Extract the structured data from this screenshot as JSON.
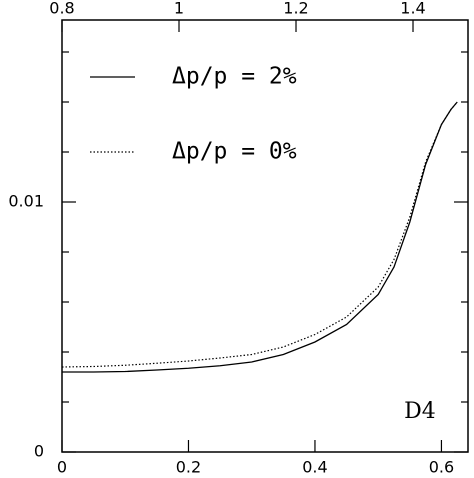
{
  "chart_data": {
    "type": "line",
    "x": [
      0,
      0.05,
      0.1,
      0.15,
      0.2,
      0.25,
      0.3,
      0.35,
      0.4,
      0.45,
      0.5,
      0.525,
      0.55,
      0.575,
      0.6,
      0.615,
      0.625
    ],
    "series": [
      {
        "name": "Δp/p = 2%",
        "color": "#000000",
        "dash": "solid",
        "values": [
          0.0032,
          0.0032,
          0.00322,
          0.00328,
          0.00335,
          0.00345,
          0.0036,
          0.0039,
          0.0044,
          0.0051,
          0.0063,
          0.0074,
          0.0092,
          0.0115,
          0.0131,
          0.0137,
          0.014
        ]
      },
      {
        "name": "Δp/p = 0%",
        "color": "#000000",
        "dash": "dotted",
        "values": [
          0.0034,
          0.00342,
          0.00347,
          0.00355,
          0.00364,
          0.00376,
          0.0039,
          0.0042,
          0.0047,
          0.0054,
          0.0066,
          0.0077,
          0.0094,
          0.0116,
          0.0131,
          0.0137,
          0.014
        ]
      }
    ],
    "xlim": [
      0,
      0.642
    ],
    "xticks": [
      0,
      0.2,
      0.4,
      0.6
    ],
    "x2lim": [
      0.8,
      1.494
    ],
    "x2ticks": [
      0.8,
      1,
      1.2,
      1.4
    ],
    "ylim": [
      0,
      0.01728
    ],
    "yticks": [
      0,
      0.01
    ],
    "y_minor_ticks": [
      0.002,
      0.004,
      0.006,
      0.008,
      0.012,
      0.014,
      0.016
    ],
    "annotation": "D4",
    "legend": "upper left"
  }
}
